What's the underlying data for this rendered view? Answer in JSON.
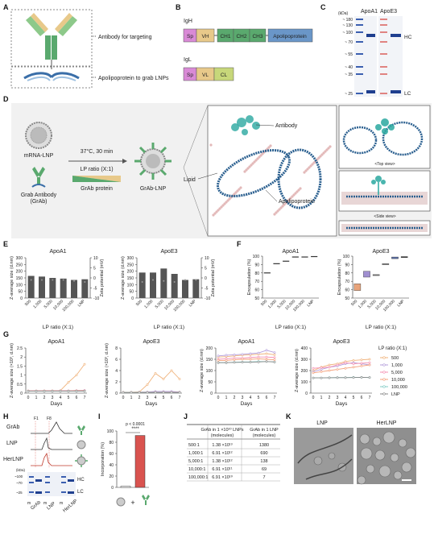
{
  "panels": {
    "A": {
      "letter": "A",
      "label_targeting": "Antibody for targeting",
      "label_grab": "Apolipoprotein to grab LNPs"
    },
    "B": {
      "letter": "B",
      "igh": {
        "name": "IgH",
        "segments": [
          "Sp",
          "VH",
          "CH1",
          "CH2",
          "CH3",
          "Apolipoprotein"
        ]
      },
      "igl": {
        "name": "IgL",
        "segments": [
          "Sp",
          "VL",
          "CL"
        ]
      },
      "colors": {
        "sp": "#d98ad6",
        "v": "#e8c98a",
        "ch": "#5aa96e",
        "apo": "#6a96c8",
        "cl": "#c7d77a"
      }
    },
    "C": {
      "letter": "C",
      "lanes": [
        "ApoA1",
        "ApoE3"
      ],
      "kda_label": "(kDa)",
      "markers": [
        "~ 180",
        "~ 130",
        "~ 100",
        "~ 70",
        "~ 55",
        "~ 40",
        "~ 35",
        "~ 25"
      ],
      "hc": "HC",
      "lc": "LC"
    },
    "D": {
      "letter": "D",
      "mrna_lnp": "mRNA-LNP",
      "grab_ab": "Grab Antibody",
      "grab_ab2": "(GrAb)",
      "condition": "37°C, 30 min",
      "lp_ratio": "LP ratio (X:1)",
      "grab_protein": "GrAb protein",
      "product": "GrAb-LNP",
      "antibody": "Antibody",
      "lipid": "Lipid",
      "apolipoprotein": "Apolipoprotein",
      "top_view": "<Top view>",
      "side_view": "<Side view>"
    },
    "E": {
      "letter": "E",
      "xlabel": "LP ratio (X:1)",
      "ylabel": "Z-average size (d.nm)",
      "ylabel2": "Zeta potential (mV)"
    },
    "F": {
      "letter": "F",
      "xlabel": "LP ratio (X:1)",
      "ylabel": "Encapsulation (%)"
    },
    "G": {
      "letter": "G",
      "xlabel": "Days",
      "ylabel_pdi": "Z-average size (×10³, d.nm)",
      "ylabel_size": "Z-average size (d.nm)",
      "legend_title": "LP ratio (X:1)"
    },
    "H": {
      "letter": "H",
      "rows": [
        "GrAb",
        "LNP",
        "HerLNP"
      ],
      "f_labels": [
        "F1",
        "F8"
      ],
      "kda": "(kDa)",
      "kda_marks": [
        "~100",
        "~70",
        "~25"
      ],
      "hc": "HC",
      "lc": "LC",
      "xlabels": [
        "GrAb",
        "LNP",
        "HerLNP"
      ],
      "m": "m"
    },
    "I": {
      "letter": "I",
      "ylabel": "Incorporation (%)",
      "pval": "p < 0.0001",
      "stars": "****",
      "plus": "+"
    },
    "J": {
      "letter": "J",
      "headers": [
        "GrAb in 1 ×10¹⁰ LNPs (molecules)",
        "GrAb in 1 LNP (molecules)"
      ],
      "header_lines": [
        [
          "GrAb in 1 ×10¹⁰ LNPs",
          "(molecules)"
        ],
        [
          "GrAb in 1 LNP",
          "(molecules)"
        ]
      ],
      "rows": [
        [
          "500:1",
          "1.38 ×10¹³",
          "1380"
        ],
        [
          "1,000:1",
          "6.91 ×10¹²",
          "690"
        ],
        [
          "5,000:1",
          "1.38 ×10¹²",
          "138"
        ],
        [
          "10,000:1",
          "6.91 ×10¹¹",
          "69"
        ],
        [
          "100,000:1",
          "6.91 ×10¹⁰",
          "7"
        ]
      ]
    },
    "K": {
      "letter": "K",
      "labels": [
        "LNP",
        "HerLNP"
      ]
    }
  },
  "chart_data": [
    {
      "id": "E-ApoA1",
      "type": "bar",
      "title": "ApoA1",
      "categories": [
        "500",
        "1,000",
        "5,000",
        "10,000",
        "100,000",
        "LNP"
      ],
      "values": [
        165,
        160,
        150,
        145,
        135,
        140
      ],
      "zeta": [
        -1,
        -1,
        -1,
        -1,
        -1.5,
        -2
      ],
      "xlabel": "LP ratio (X:1)",
      "ylabel": "Z-average size (d.nm)",
      "ylim": [
        0,
        300
      ],
      "y2label": "Zeta potential (mV)",
      "y2lim": [
        -10,
        10
      ],
      "yticks": [
        0,
        50,
        100,
        150,
        200,
        250,
        300
      ],
      "y2ticks": [
        10,
        5,
        0,
        -5,
        -10
      ]
    },
    {
      "id": "E-ApoE3",
      "type": "bar",
      "title": "ApoE3",
      "categories": [
        "500",
        "1,000",
        "5,000",
        "10,000",
        "100,000",
        "LNP"
      ],
      "values": [
        190,
        190,
        220,
        180,
        135,
        140
      ],
      "zeta": [
        -2,
        -1,
        -1.5,
        -2,
        -1,
        -1
      ],
      "xlabel": "LP ratio (X:1)",
      "ylabel": "Z-average size (d.nm)",
      "ylim": [
        0,
        300
      ],
      "y2label": "Zeta potential (mV)",
      "y2lim": [
        -10,
        10
      ],
      "yticks": [
        0,
        50,
        100,
        150,
        200,
        250,
        300
      ],
      "y2ticks": [
        10,
        5,
        0,
        -5,
        -10
      ]
    },
    {
      "id": "F-ApoA1",
      "type": "box",
      "title": "ApoA1",
      "categories": [
        "500",
        "1,000",
        "5,000",
        "10,000",
        "100,000",
        "LNP"
      ],
      "values": [
        80,
        91,
        94,
        99,
        99,
        99.5
      ],
      "xlabel": "LP ratio (X:1)",
      "ylabel": "Encapsulation (%)",
      "ylim": [
        50,
        100
      ],
      "yticks": [
        50,
        60,
        70,
        80,
        90,
        100
      ]
    },
    {
      "id": "F-ApoE3",
      "type": "box",
      "title": "ApoE3",
      "categories": [
        "500",
        "1,000",
        "5,000",
        "10,000",
        "100,000",
        "LNP"
      ],
      "values": [
        63,
        79,
        78,
        91,
        98,
        99.5
      ],
      "boxes": [
        [
          59,
          67
        ],
        [
          75,
          82
        ],
        [
          78,
          78
        ],
        [
          91,
          91
        ],
        [
          97,
          99
        ],
        [
          99.5,
          99.5
        ]
      ],
      "box_colors": [
        "#e8a37a",
        "#a08fd0",
        "#7a7a7a",
        "#7a7a7a",
        "#5a6fa8",
        "#333333"
      ],
      "xlabel": "LP ratio (X:1)",
      "ylabel": "Encapsulation (%)",
      "ylim": [
        50,
        100
      ],
      "yticks": [
        50,
        60,
        70,
        80,
        90,
        100
      ]
    },
    {
      "id": "G-ApoA1-pdi",
      "type": "line",
      "title": "ApoA1",
      "x": [
        0,
        1,
        2,
        3,
        4,
        5,
        6,
        7
      ],
      "series": [
        {
          "name": "500",
          "values": [
            0.12,
            0.12,
            0.13,
            0.13,
            0.14,
            0.6,
            1.0,
            1.6
          ]
        },
        {
          "name": "1,000",
          "values": [
            0.12,
            0.12,
            0.12,
            0.12,
            0.13,
            0.13,
            0.14,
            0.15
          ]
        },
        {
          "name": "5,000",
          "values": [
            0.13,
            0.13,
            0.13,
            0.13,
            0.13,
            0.13,
            0.14,
            0.14
          ]
        },
        {
          "name": "10,000",
          "values": [
            0.12,
            0.12,
            0.12,
            0.12,
            0.12,
            0.12,
            0.13,
            0.13
          ]
        },
        {
          "name": "100,000",
          "values": [
            0.11,
            0.11,
            0.11,
            0.11,
            0.11,
            0.11,
            0.11,
            0.11
          ]
        },
        {
          "name": "LNP",
          "values": [
            0.11,
            0.11,
            0.11,
            0.11,
            0.11,
            0.11,
            0.11,
            0.11
          ]
        }
      ],
      "xlabel": "Days",
      "ylabel": "Z-average size (×10³, d.nm)",
      "ylim": [
        0,
        2.5
      ],
      "yticks": [
        0,
        0.5,
        1.0,
        1.5,
        2.0,
        2.5
      ]
    },
    {
      "id": "G-ApoE3-pdi",
      "type": "line",
      "title": "ApoE3",
      "x": [
        0,
        1,
        2,
        3,
        4,
        5,
        6,
        7
      ],
      "series": [
        {
          "name": "500",
          "values": [
            0.15,
            0.15,
            0.2,
            1.5,
            3.5,
            2.5,
            4.0,
            2.5
          ]
        },
        {
          "name": "1,000",
          "values": [
            0.14,
            0.14,
            0.16,
            0.2,
            0.3,
            0.3,
            0.3,
            0.2
          ]
        },
        {
          "name": "5,000",
          "values": [
            0.14,
            0.14,
            0.14,
            0.15,
            0.15,
            0.15,
            0.16,
            0.16
          ]
        },
        {
          "name": "10,000",
          "values": [
            0.13,
            0.13,
            0.13,
            0.13,
            0.14,
            0.14,
            0.14,
            0.14
          ]
        },
        {
          "name": "100,000",
          "values": [
            0.12,
            0.12,
            0.12,
            0.12,
            0.12,
            0.12,
            0.12,
            0.12
          ]
        },
        {
          "name": "LNP",
          "values": [
            0.12,
            0.12,
            0.12,
            0.12,
            0.12,
            0.12,
            0.12,
            0.12
          ]
        }
      ],
      "xlabel": "Days",
      "ylabel": "Z-average size (×10³, d.nm)",
      "ylim": [
        0,
        8
      ],
      "yticks": [
        0,
        2,
        4,
        6,
        8
      ]
    },
    {
      "id": "G-ApoA1-size",
      "type": "line",
      "title": "ApoA1",
      "x": [
        0,
        1,
        2,
        3,
        4,
        5,
        6,
        7
      ],
      "series": [
        {
          "name": "500",
          "values": [
            160,
            162,
            165,
            168,
            170,
            172,
            175,
            170
          ]
        },
        {
          "name": "1,000",
          "values": [
            165,
            168,
            170,
            172,
            175,
            178,
            190,
            180
          ]
        },
        {
          "name": "5,000",
          "values": [
            150,
            152,
            155,
            155,
            158,
            160,
            160,
            158
          ]
        },
        {
          "name": "10,000",
          "values": [
            145,
            145,
            148,
            150,
            150,
            152,
            150,
            148
          ]
        },
        {
          "name": "100,000",
          "values": [
            135,
            135,
            137,
            138,
            138,
            140,
            140,
            138
          ]
        },
        {
          "name": "LNP",
          "values": [
            135,
            135,
            136,
            137,
            137,
            138,
            140,
            138
          ]
        }
      ],
      "xlabel": "Days",
      "ylabel": "Z-average size (d.nm)",
      "ylim": [
        0,
        200
      ],
      "yticks": [
        0,
        50,
        100,
        150,
        200
      ]
    },
    {
      "id": "G-ApoE3-size",
      "type": "line",
      "title": "ApoE3",
      "x": [
        0,
        1,
        2,
        3,
        4,
        5,
        6,
        7
      ],
      "series": [
        {
          "name": "500",
          "values": [
            200,
            230,
            250,
            260,
            280,
            290,
            295,
            300
          ]
        },
        {
          "name": "1,000",
          "values": [
            190,
            210,
            230,
            240,
            260,
            270,
            260,
            250
          ]
        },
        {
          "name": "5,000",
          "values": [
            220,
            225,
            230,
            250,
            270,
            260,
            265,
            270
          ]
        },
        {
          "name": "10,000",
          "values": [
            180,
            190,
            200,
            210,
            220,
            230,
            240,
            250
          ]
        },
        {
          "name": "100,000",
          "values": [
            135,
            135,
            137,
            138,
            138,
            140,
            140,
            138
          ]
        },
        {
          "name": "LNP",
          "values": [
            135,
            135,
            136,
            137,
            137,
            138,
            140,
            138
          ]
        }
      ],
      "xlabel": "Days",
      "ylabel": "Z-average size (d.nm)",
      "ylim": [
        0,
        400
      ],
      "yticks": [
        0,
        100,
        200,
        300,
        400
      ]
    },
    {
      "id": "I",
      "type": "bar",
      "categories": [
        "LNP",
        "GrAb-LNP"
      ],
      "values": [
        2,
        92
      ],
      "colors": [
        "#ffffff",
        "#d9534f"
      ],
      "ylabel": "Incorporation (%)",
      "ylim": [
        0,
        100
      ],
      "yticks": [
        0,
        20,
        40,
        60,
        80,
        100
      ]
    }
  ],
  "series_colors": {
    "500": "#f0b27a",
    "1,000": "#b39ddb",
    "5,000": "#f48fb1",
    "10,000": "#f4a07a",
    "100,000": "#80cbc4",
    "LNP": "#888888"
  }
}
